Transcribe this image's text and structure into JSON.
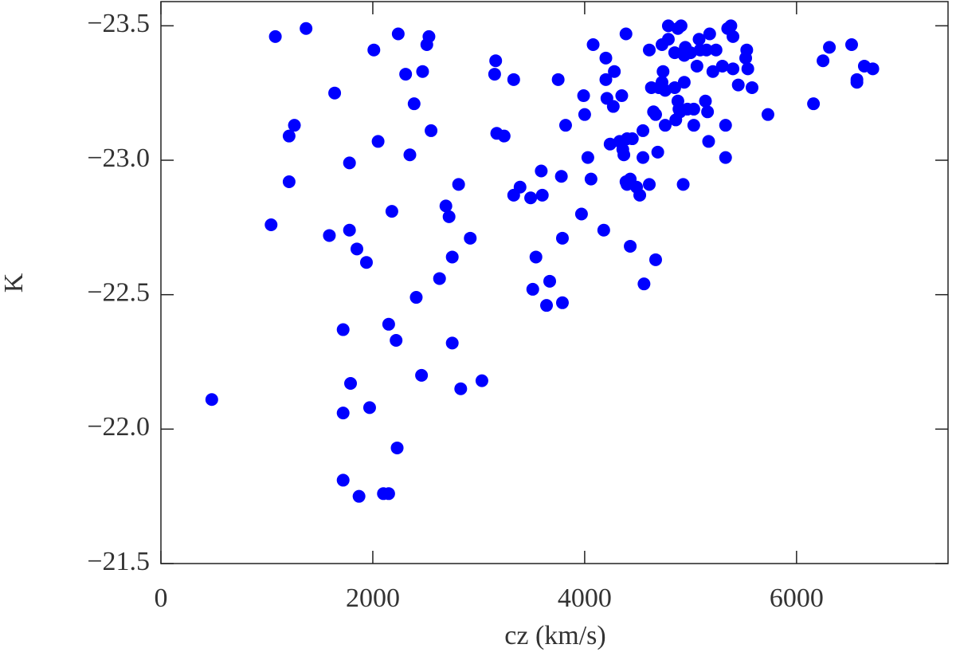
{
  "chart_data": {
    "type": "scatter",
    "x_label": "cz (km/s)",
    "y_label": "K",
    "color": "#0000ff",
    "xlim": [
      0,
      7430
    ],
    "ylim": [
      -21.5,
      -23.59
    ],
    "xticks": [
      0,
      2000,
      4000,
      6000
    ],
    "yticks": [
      {
        "value": -23.5,
        "label": "−23.5"
      },
      {
        "value": -23.0,
        "label": "−23.0"
      },
      {
        "value": -22.5,
        "label": "−22.5"
      },
      {
        "value": -22.0,
        "label": "−22.0"
      },
      {
        "value": -21.5,
        "label": "−21.5"
      }
    ],
    "x": [
      480,
      1080,
      1370,
      1040,
      1210,
      1210,
      1260,
      1640,
      1590,
      1780,
      1780,
      1850,
      1940,
      1720,
      1790,
      1720,
      1720,
      1870,
      1970,
      2010,
      2050,
      2100,
      2150,
      2180,
      2150,
      2220,
      2230,
      2240,
      2310,
      2350,
      2390,
      2470,
      2510,
      2530,
      2550,
      2410,
      2460,
      2630,
      2690,
      2720,
      2750,
      2750,
      2810,
      2830,
      2920,
      3030,
      3160,
      3150,
      3170,
      3240,
      3330,
      3330,
      3390,
      3490,
      3510,
      3540,
      3590,
      3600,
      3640,
      3670,
      3750,
      3780,
      3790,
      3790,
      3820,
      3970,
      3990,
      4000,
      4030,
      4060,
      4080,
      4180,
      4200,
      4200,
      4210,
      4240,
      4270,
      4280,
      4330,
      4350,
      4360,
      4390,
      4370,
      4390,
      4400,
      4400,
      4430,
      4430,
      4450,
      4490,
      4520,
      4550,
      4550,
      4560,
      4610,
      4610,
      4630,
      4650,
      4670,
      4670,
      4690,
      4700,
      4730,
      4730,
      4740,
      4760,
      4760,
      4790,
      4790,
      4850,
      4850,
      4860,
      4880,
      4880,
      4890,
      4900,
      4910,
      4930,
      4940,
      4940,
      4950,
      4970,
      5000,
      5030,
      5030,
      5060,
      5080,
      5090,
      5140,
      5150,
      5160,
      5170,
      5180,
      5210,
      5240,
      5300,
      5330,
      5330,
      5350,
      5380,
      5400,
      5400,
      5450,
      5520,
      5530,
      5540,
      5580,
      5730,
      6160,
      6250,
      6310,
      6520,
      6570,
      6570,
      6640,
      6720
    ],
    "values": [
      -22.11,
      -23.46,
      -23.49,
      -22.76,
      -22.92,
      -23.09,
      -23.13,
      -23.25,
      -22.72,
      -22.99,
      -22.74,
      -22.67,
      -22.62,
      -22.37,
      -22.17,
      -22.06,
      -21.81,
      -21.75,
      -22.08,
      -23.41,
      -23.07,
      -21.76,
      -21.76,
      -22.81,
      -22.39,
      -22.33,
      -21.93,
      -23.47,
      -23.32,
      -23.02,
      -23.21,
      -23.33,
      -23.43,
      -23.46,
      -23.11,
      -22.49,
      -22.2,
      -22.56,
      -22.83,
      -22.79,
      -22.64,
      -22.32,
      -22.91,
      -22.15,
      -22.71,
      -22.18,
      -23.37,
      -23.32,
      -23.1,
      -23.09,
      -23.3,
      -22.87,
      -22.9,
      -22.86,
      -22.52,
      -22.64,
      -22.96,
      -22.87,
      -22.46,
      -22.55,
      -23.3,
      -22.94,
      -22.71,
      -22.47,
      -23.13,
      -22.8,
      -23.24,
      -23.17,
      -23.01,
      -22.93,
      -23.43,
      -22.74,
      -23.38,
      -23.3,
      -23.23,
      -23.06,
      -23.2,
      -23.33,
      -23.07,
      -23.24,
      -23.04,
      -23.47,
      -23.02,
      -22.92,
      -23.08,
      -22.91,
      -22.93,
      -22.68,
      -23.08,
      -22.9,
      -22.87,
      -23.01,
      -23.11,
      -22.54,
      -23.41,
      -22.91,
      -23.27,
      -23.18,
      -22.63,
      -23.17,
      -23.03,
      -23.27,
      -23.29,
      -23.43,
      -23.33,
      -23.26,
      -23.13,
      -23.45,
      -23.5,
      -23.27,
      -23.4,
      -23.15,
      -23.22,
      -23.49,
      -23.19,
      -23.18,
      -23.5,
      -22.91,
      -23.29,
      -23.39,
      -23.42,
      -23.19,
      -23.4,
      -23.13,
      -23.19,
      -23.35,
      -23.45,
      -23.41,
      -23.22,
      -23.41,
      -23.18,
      -23.07,
      -23.47,
      -23.33,
      -23.41,
      -23.35,
      -23.13,
      -23.01,
      -23.49,
      -23.5,
      -23.46,
      -23.34,
      -23.28,
      -23.38,
      -23.41,
      -23.34,
      -23.27,
      -23.17,
      -23.21,
      -23.37,
      -23.42,
      -23.43,
      -23.3,
      -23.29,
      -23.35,
      -23.34
    ]
  }
}
